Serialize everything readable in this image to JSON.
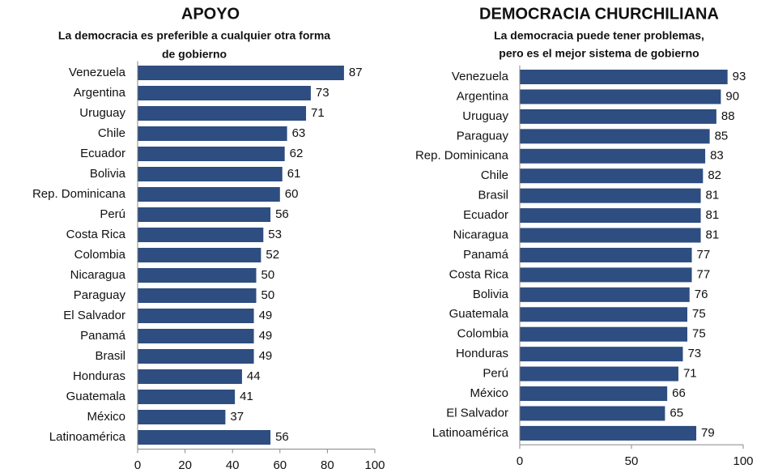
{
  "chart_data": [
    {
      "type": "bar",
      "orientation": "horizontal",
      "title": "APOYO",
      "subtitle": [
        "La democracia es preferible a cualquier otra forma",
        "de gobierno"
      ],
      "categories": [
        "Venezuela",
        "Argentina",
        "Uruguay",
        "Chile",
        "Ecuador",
        "Bolivia",
        "Rep. Dominicana",
        "Perú",
        "Costa Rica",
        "Colombia",
        "Nicaragua",
        "Paraguay",
        "El Salvador",
        "Panamá",
        "Brasil",
        "Honduras",
        "Guatemala",
        "México",
        "Latinoamérica"
      ],
      "values": [
        87,
        73,
        71,
        63,
        62,
        61,
        60,
        56,
        53,
        52,
        50,
        50,
        49,
        49,
        49,
        44,
        41,
        37,
        56
      ],
      "color": "#2e4d80",
      "xlim": [
        0,
        100
      ],
      "xticks": [
        0,
        20,
        40,
        60,
        80,
        100
      ]
    },
    {
      "type": "bar",
      "orientation": "horizontal",
      "title": "DEMOCRACIA CHURCHILIANA",
      "subtitle": [
        "La democracia puede tener problemas,",
        "pero es el mejor sistema de gobierno"
      ],
      "categories": [
        "Venezuela",
        "Argentina",
        "Uruguay",
        "Paraguay",
        "Rep. Dominicana",
        "Chile",
        "Brasil",
        "Ecuador",
        "Nicaragua",
        "Panamá",
        "Costa Rica",
        "Bolivia",
        "Guatemala",
        "Colombia",
        "Honduras",
        "Perú",
        "México",
        "El Salvador",
        "Latinoamérica"
      ],
      "values": [
        93,
        90,
        88,
        85,
        83,
        82,
        81,
        81,
        81,
        77,
        77,
        76,
        75,
        75,
        73,
        71,
        66,
        65,
        79
      ],
      "color": "#2e4d80",
      "xlim": [
        0,
        100
      ],
      "xticks": [
        0,
        50,
        100
      ]
    }
  ]
}
